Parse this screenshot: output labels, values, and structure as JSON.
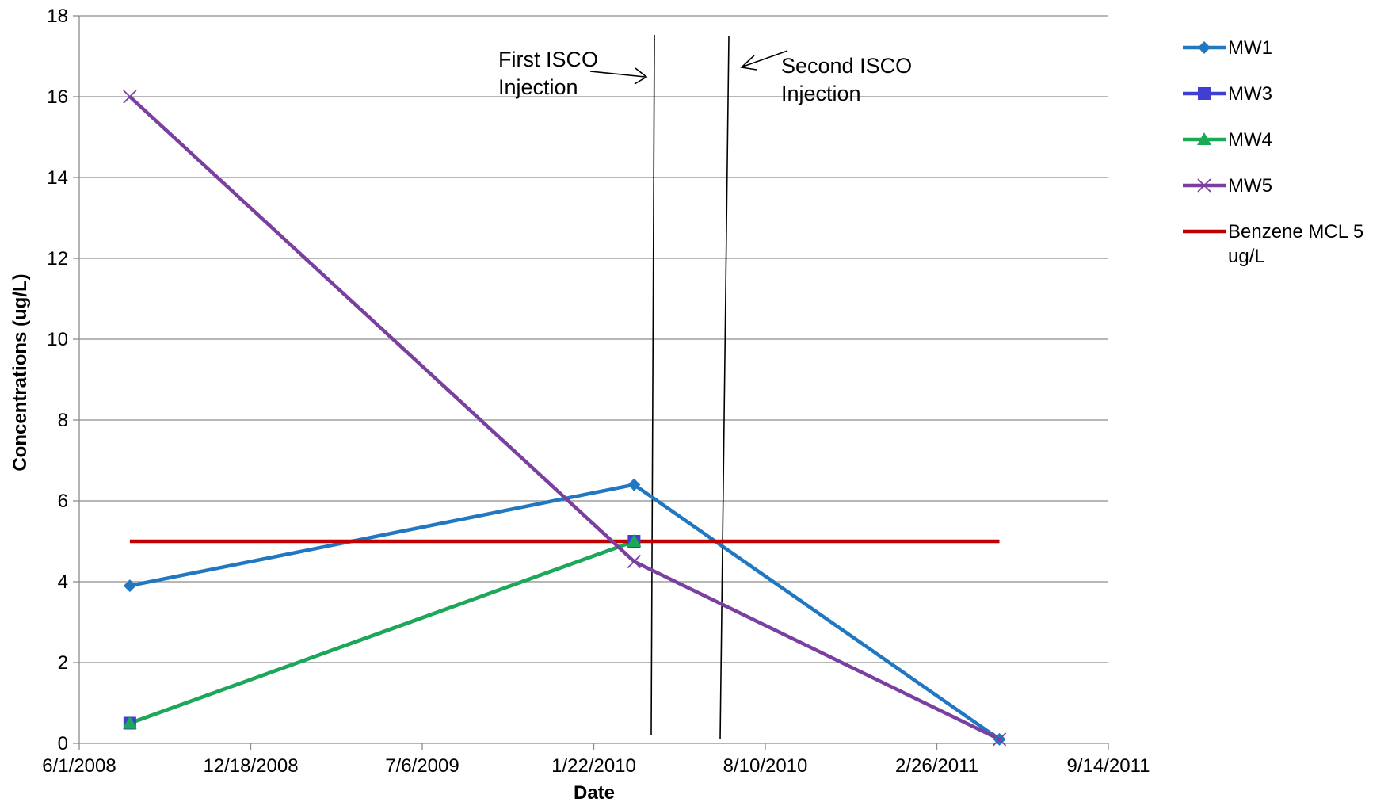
{
  "chart_data": {
    "type": "line",
    "xlabel": "Date",
    "ylabel": "Concentrations (ug/L)",
    "x_tick_labels": [
      "6/1/2008",
      "12/18/2008",
      "7/6/2009",
      "1/22/2010",
      "8/10/2010",
      "2/26/2011",
      "9/14/2011"
    ],
    "x_ticks": [
      "2008-06-01",
      "2008-12-18",
      "2009-07-06",
      "2010-01-22",
      "2010-08-10",
      "2011-02-26",
      "2011-09-14"
    ],
    "xlim": [
      "2008-06-01",
      "2011-09-14"
    ],
    "ylim": [
      0,
      18
    ],
    "y_ticks": [
      0,
      2,
      4,
      6,
      8,
      10,
      12,
      14,
      16,
      18
    ],
    "grid": "horizontal",
    "legend_position": "right",
    "series": [
      {
        "name": "MW1",
        "color": "#1f78c1",
        "marker": "diamond",
        "points": [
          {
            "x": "2008-07-30",
            "y": 3.9
          },
          {
            "x": "2010-03-10",
            "y": 6.4
          },
          {
            "x": "2011-05-10",
            "y": 0.1
          }
        ]
      },
      {
        "name": "MW3",
        "color": "#3f3fd1",
        "marker": "square",
        "points": [
          {
            "x": "2008-07-30",
            "y": 0.5
          },
          {
            "x": "2010-03-10",
            "y": 5.0
          }
        ]
      },
      {
        "name": "MW4",
        "color": "#1aaa55",
        "marker": "triangle",
        "points": [
          {
            "x": "2008-07-30",
            "y": 0.5
          },
          {
            "x": "2010-03-10",
            "y": 5.0
          }
        ]
      },
      {
        "name": "MW5",
        "color": "#7b3fa0",
        "marker": "x",
        "points": [
          {
            "x": "2008-07-30",
            "y": 16.0
          },
          {
            "x": "2010-03-10",
            "y": 4.5
          },
          {
            "x": "2011-05-10",
            "y": 0.1
          }
        ]
      },
      {
        "name": "Benzene MCL 5 ug/L",
        "color": "#c00000",
        "marker": "none",
        "points": [
          {
            "x": "2008-07-30",
            "y": 5.0
          },
          {
            "x": "2011-05-10",
            "y": 5.0
          }
        ]
      }
    ],
    "annotations": [
      {
        "lines": [
          "First ISCO",
          "Injection"
        ]
      },
      {
        "lines": [
          "Second ISCO",
          "Injection"
        ]
      }
    ]
  }
}
